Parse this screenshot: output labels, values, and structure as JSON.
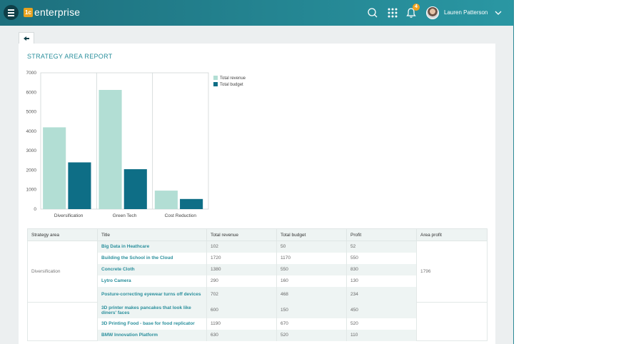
{
  "app": {
    "logo_badge": "1c",
    "logo_text": "enterprise",
    "notifications_count": "4",
    "user_name": "Lauren Patterson",
    "icons": [
      "menu-icon",
      "search-icon",
      "apps-grid-icon",
      "bell-icon",
      "chevron-down-icon",
      "back-arrow-icon"
    ]
  },
  "report": {
    "title": "STRATEGY AREA REPORT"
  },
  "chart_data": {
    "type": "bar",
    "title": "",
    "xlabel": "",
    "ylabel": "",
    "categories": [
      "Diversification",
      "Green Tech",
      "Cost Reduction"
    ],
    "series": [
      {
        "name": "Total revenue",
        "values": [
          4200,
          6120,
          950
        ],
        "color": "#b2ded4"
      },
      {
        "name": "Total budget",
        "values": [
          2400,
          2050,
          520
        ],
        "color": "#0e6e86"
      }
    ],
    "ylim": [
      0,
      7000
    ],
    "yticks": [
      0,
      1000,
      2000,
      3000,
      4000,
      5000,
      6000,
      7000
    ],
    "grid": "vertical separators between categories",
    "legend_position": "right"
  },
  "table": {
    "headers": [
      "Strategy area",
      "Title",
      "Total revenue",
      "Total budget",
      "Profit",
      "Area profit"
    ],
    "groups": [
      {
        "area": "Diversification",
        "area_profit": "1796",
        "rows": [
          {
            "title": "Big Data in Heathcare",
            "revenue": "102",
            "budget": "50",
            "profit": "52"
          },
          {
            "title": "Building the School in the Cloud",
            "revenue": "1720",
            "budget": "1170",
            "profit": "550"
          },
          {
            "title": "Concrete Cloth",
            "revenue": "1380",
            "budget": "550",
            "profit": "830"
          },
          {
            "title": "Lytro Camera",
            "revenue": "290",
            "budget": "160",
            "profit": "130"
          },
          {
            "title": "Posture-correcting eyewear turns off devices",
            "revenue": "702",
            "budget": "468",
            "profit": "234"
          }
        ]
      },
      {
        "area": "",
        "area_profit": "",
        "rows": [
          {
            "title": "3D printer makes pancakes that look like diners' faces",
            "revenue": "600",
            "budget": "150",
            "profit": "450"
          },
          {
            "title": "3D Printing Food - base for food replicator",
            "revenue": "1190",
            "budget": "670",
            "profit": "520"
          },
          {
            "title": "BMW Innovation Platform",
            "revenue": "630",
            "budget": "520",
            "profit": "110"
          }
        ]
      }
    ]
  }
}
